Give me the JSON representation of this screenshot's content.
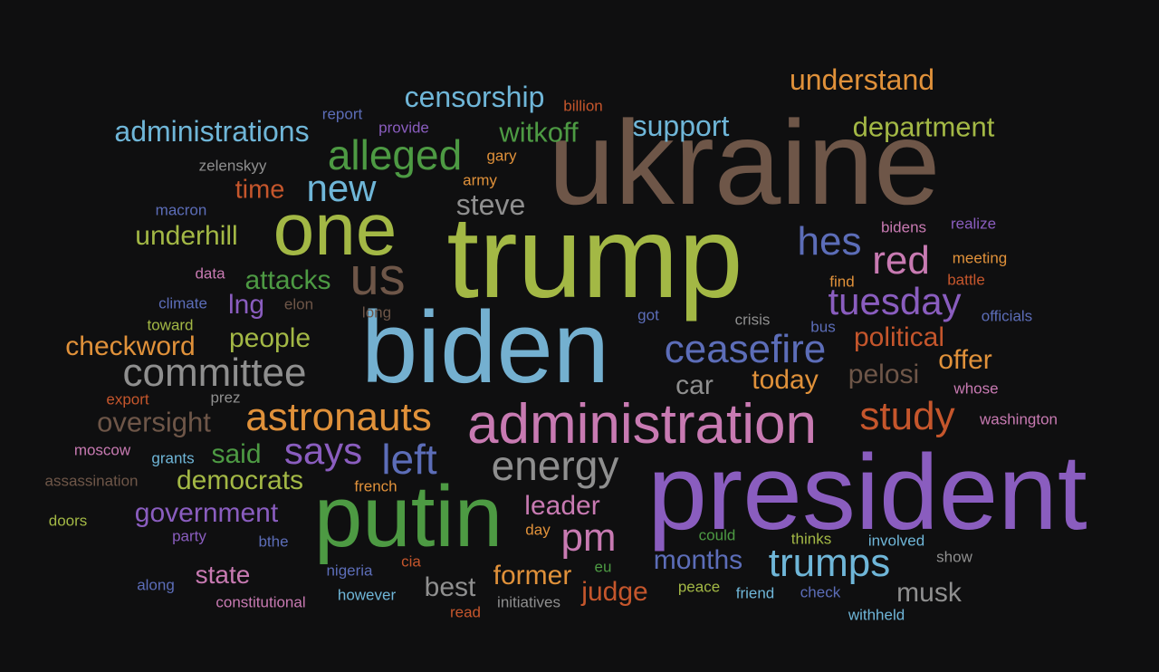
{
  "colors": {
    "background": "#0f0f10",
    "olive": "#a3b845",
    "brown": "#6e5648",
    "purple": "#8a5dbf",
    "blue": "#74b0d0",
    "green": "#4d9a43",
    "orange": "#e0913a",
    "red": "#c5562c",
    "pink": "#c87ab2",
    "indigo": "#5c6db8",
    "gray": "#8f8f8f",
    "teal": "#6fb6d8"
  },
  "words": [
    {
      "text": "ukraine",
      "color": "brown"
    },
    {
      "text": "trump",
      "color": "olive"
    },
    {
      "text": "biden",
      "color": "blue"
    },
    {
      "text": "president",
      "color": "purple"
    },
    {
      "text": "putin",
      "color": "green"
    },
    {
      "text": "one",
      "color": "olive"
    },
    {
      "text": "administration",
      "color": "pink"
    },
    {
      "text": "us",
      "color": "brown"
    },
    {
      "text": "alleged",
      "color": "green"
    },
    {
      "text": "committee",
      "color": "gray"
    },
    {
      "text": "astronauts",
      "color": "orange"
    },
    {
      "text": "ceasefire",
      "color": "indigo"
    },
    {
      "text": "energy",
      "color": "gray"
    },
    {
      "text": "trumps",
      "color": "teal"
    },
    {
      "text": "new",
      "color": "teal"
    },
    {
      "text": "tuesday",
      "color": "purple"
    },
    {
      "text": "study",
      "color": "red"
    },
    {
      "text": "says",
      "color": "purple"
    },
    {
      "text": "left",
      "color": "indigo"
    },
    {
      "text": "pm",
      "color": "pink"
    },
    {
      "text": "hes",
      "color": "indigo"
    },
    {
      "text": "red",
      "color": "pink"
    },
    {
      "text": "administrations",
      "color": "teal"
    },
    {
      "text": "censorship",
      "color": "teal"
    },
    {
      "text": "understand",
      "color": "orange"
    },
    {
      "text": "department",
      "color": "olive"
    },
    {
      "text": "support",
      "color": "teal"
    },
    {
      "text": "witkoff",
      "color": "green"
    },
    {
      "text": "steve",
      "color": "gray"
    },
    {
      "text": "time",
      "color": "red"
    },
    {
      "text": "underhill",
      "color": "olive"
    },
    {
      "text": "attacks",
      "color": "green"
    },
    {
      "text": "lng",
      "color": "purple"
    },
    {
      "text": "checkword",
      "color": "orange"
    },
    {
      "text": "people",
      "color": "olive"
    },
    {
      "text": "oversight",
      "color": "brown"
    },
    {
      "text": "political",
      "color": "red"
    },
    {
      "text": "offer",
      "color": "orange"
    },
    {
      "text": "pelosi",
      "color": "brown"
    },
    {
      "text": "today",
      "color": "orange"
    },
    {
      "text": "car",
      "color": "gray"
    },
    {
      "text": "government",
      "color": "purple"
    },
    {
      "text": "democrats",
      "color": "olive"
    },
    {
      "text": "said",
      "color": "green"
    },
    {
      "text": "leader",
      "color": "pink"
    },
    {
      "text": "months",
      "color": "indigo"
    },
    {
      "text": "former",
      "color": "orange"
    },
    {
      "text": "judge",
      "color": "red"
    },
    {
      "text": "best",
      "color": "gray"
    },
    {
      "text": "state",
      "color": "pink"
    },
    {
      "text": "musk",
      "color": "gray"
    },
    {
      "text": "report",
      "color": "indigo"
    },
    {
      "text": "provide",
      "color": "purple"
    },
    {
      "text": "billion",
      "color": "red"
    },
    {
      "text": "gary",
      "color": "orange"
    },
    {
      "text": "army",
      "color": "orange"
    },
    {
      "text": "zelenskyy",
      "color": "gray"
    },
    {
      "text": "macron",
      "color": "indigo"
    },
    {
      "text": "bidens",
      "color": "pink"
    },
    {
      "text": "realize",
      "color": "purple"
    },
    {
      "text": "meeting",
      "color": "orange"
    },
    {
      "text": "battle",
      "color": "red"
    },
    {
      "text": "find",
      "color": "orange"
    },
    {
      "text": "data",
      "color": "pink"
    },
    {
      "text": "climate",
      "color": "indigo"
    },
    {
      "text": "elon",
      "color": "brown"
    },
    {
      "text": "long",
      "color": "brown"
    },
    {
      "text": "toward",
      "color": "olive"
    },
    {
      "text": "got",
      "color": "indigo"
    },
    {
      "text": "crisis",
      "color": "gray"
    },
    {
      "text": "bus",
      "color": "indigo"
    },
    {
      "text": "officials",
      "color": "indigo"
    },
    {
      "text": "export",
      "color": "red"
    },
    {
      "text": "prez",
      "color": "gray"
    },
    {
      "text": "whose",
      "color": "pink"
    },
    {
      "text": "washington",
      "color": "pink"
    },
    {
      "text": "moscow",
      "color": "pink"
    },
    {
      "text": "grants",
      "color": "teal"
    },
    {
      "text": "assassination",
      "color": "brown"
    },
    {
      "text": "french",
      "color": "orange"
    },
    {
      "text": "doors",
      "color": "olive"
    },
    {
      "text": "party",
      "color": "purple"
    },
    {
      "text": "bthe",
      "color": "indigo"
    },
    {
      "text": "day",
      "color": "orange"
    },
    {
      "text": "could",
      "color": "green"
    },
    {
      "text": "thinks",
      "color": "olive"
    },
    {
      "text": "involved",
      "color": "teal"
    },
    {
      "text": "show",
      "color": "gray"
    },
    {
      "text": "cia",
      "color": "red"
    },
    {
      "text": "eu",
      "color": "green"
    },
    {
      "text": "nigeria",
      "color": "indigo"
    },
    {
      "text": "along",
      "color": "indigo"
    },
    {
      "text": "constitutional",
      "color": "pink"
    },
    {
      "text": "however",
      "color": "teal"
    },
    {
      "text": "initiatives",
      "color": "gray"
    },
    {
      "text": "read",
      "color": "red"
    },
    {
      "text": "peace",
      "color": "olive"
    },
    {
      "text": "friend",
      "color": "teal"
    },
    {
      "text": "check",
      "color": "indigo"
    },
    {
      "text": "withheld",
      "color": "teal"
    }
  ]
}
